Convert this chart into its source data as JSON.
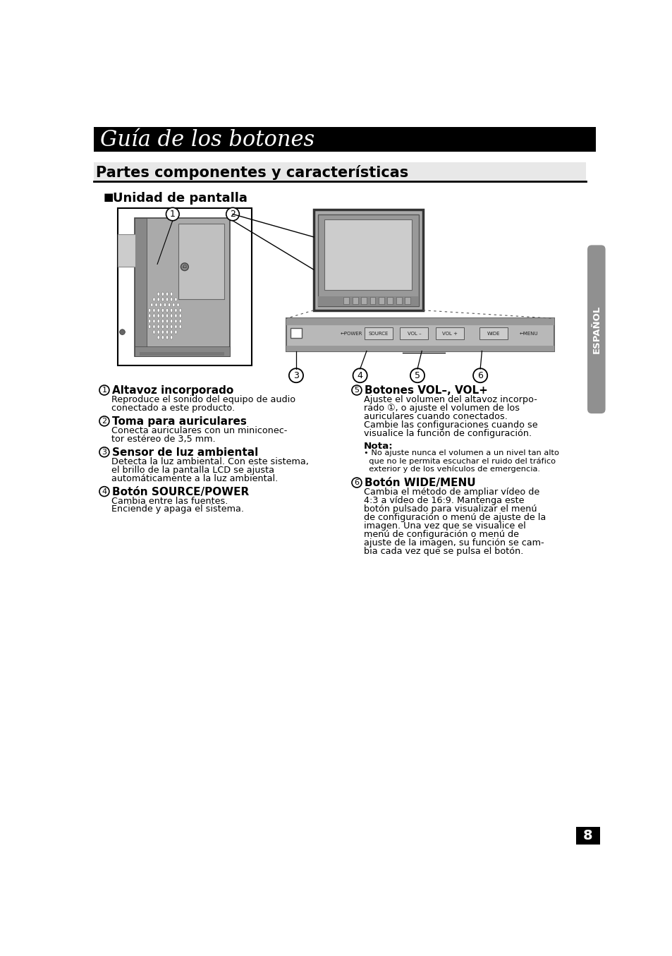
{
  "title": "Guía de los botones",
  "title_bg": "#000000",
  "title_color": "#ffffff",
  "section_title": "Partes componentes y características",
  "section_bg": "#e8e8e8",
  "subsection": "Unidad de pantalla",
  "page_bg": "#ffffff",
  "sidebar_color": "#909090",
  "sidebar_text": "ESPAÑOL",
  "page_number": "8",
  "left_items": [
    {
      "num": "1",
      "heading": "Altavoz incorporado",
      "body": "Reproduce el sonido del equipo de audio\nconectado a este producto."
    },
    {
      "num": "2",
      "heading": "Toma para auriculares",
      "body": "Conecta auriculares con un miniconec-\ntor estéreo de 3,5 mm."
    },
    {
      "num": "3",
      "heading": "Sensor de luz ambiental",
      "body": "Detecta la luz ambiental. Con este sistema,\nel brillo de la pantalla LCD se ajusta\nautomáticamente a la luz ambiental."
    },
    {
      "num": "4",
      "heading": "Botón SOURCE/POWER",
      "body": "Cambia entre las fuentes.\nEnciende y apaga el sistema."
    }
  ],
  "right_items": [
    {
      "num": "5",
      "heading": "Botones VOL–, VOL+",
      "body": "Ajuste el volumen del altavoz incorpo-\nrado ①, o ajuste el volumen de los\nauriculares cuando conectados.\nCambie las configuraciones cuando se\nvisualice la función de configuración."
    },
    {
      "note_heading": "Nota:",
      "note_body": "• No ajuste nunca el volumen a un nivel tan alto\n  que no le permita escuchar el ruido del tráfico\n  exterior y de los vehículos de emergencia."
    },
    {
      "num": "6",
      "heading": "Botón WIDE/MENU",
      "body": "Cambia el método de ampliar vídeo de\n4:3 a vídeo de 16:9. Mantenga este\nbotón pulsado para visualizar el menú\nde configuración o menú de ajuste de la\nimagen. Una vez que se visualice el\nmenú de configuración o menú de\najuste de la imagen, su función se cam-\nbia cada vez que se pulsa el botón."
    }
  ]
}
